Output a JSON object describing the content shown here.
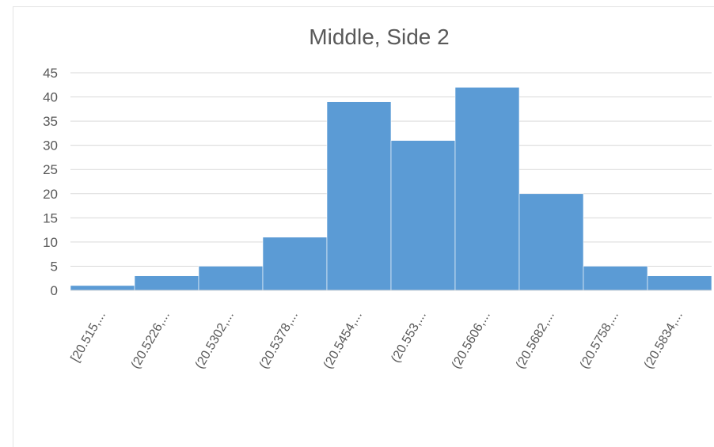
{
  "chart_data": {
    "type": "bar",
    "title": "Middle,  Side 2",
    "xlabel": "",
    "ylabel": "",
    "categories": [
      "[20.515,...",
      "(20.5226,...",
      "(20.5302,...",
      "(20.5378,...",
      "(20.5454,...",
      "(20.553,...",
      "(20.5606,...",
      "(20.5682,...",
      "(20.5758,...",
      "(20.5834,..."
    ],
    "values": [
      1,
      3,
      5,
      11,
      39,
      31,
      42,
      20,
      5,
      3
    ],
    "ylim": [
      0,
      45
    ],
    "yticks": [
      "0",
      "5",
      "10",
      "15",
      "20",
      "25",
      "30",
      "35",
      "40",
      "45"
    ],
    "grid": true,
    "legend": "none",
    "bar_color": "#5b9bd5"
  }
}
